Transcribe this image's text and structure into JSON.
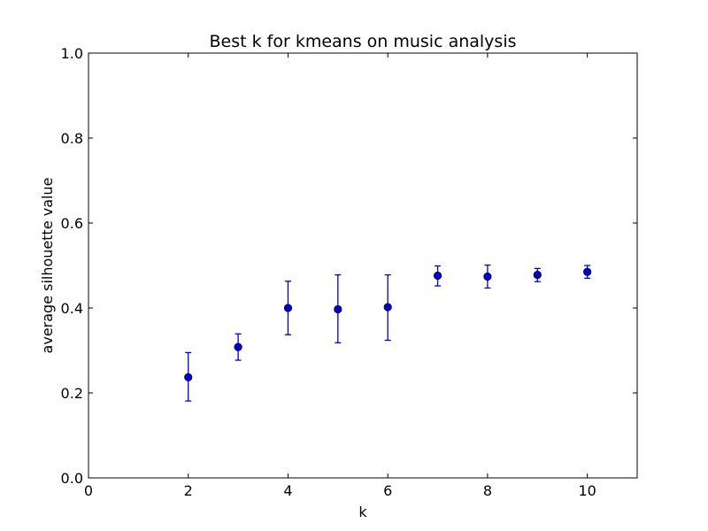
{
  "chart_data": {
    "type": "scatter",
    "title": "Best k for kmeans on music analysis",
    "xlabel": "k",
    "ylabel": "average silhouette value",
    "xlim": [
      0,
      11
    ],
    "ylim": [
      0.0,
      1.0
    ],
    "x_ticks": [
      0,
      2,
      4,
      6,
      8,
      10
    ],
    "x_tick_labels": [
      "0",
      "2",
      "4",
      "6",
      "8",
      "10"
    ],
    "y_ticks": [
      0.0,
      0.2,
      0.4,
      0.6,
      0.8,
      1.0
    ],
    "y_tick_labels": [
      "0.0",
      "0.2",
      "0.4",
      "0.6",
      "0.8",
      "1.0"
    ],
    "grid": false,
    "series": [
      {
        "marker": "circle",
        "error_bars": true,
        "points": [
          {
            "x": 2,
            "y": 0.237,
            "y_low": 0.181,
            "y_high": 0.295
          },
          {
            "x": 3,
            "y": 0.308,
            "y_low": 0.277,
            "y_high": 0.339
          },
          {
            "x": 4,
            "y": 0.4,
            "y_low": 0.337,
            "y_high": 0.463
          },
          {
            "x": 5,
            "y": 0.397,
            "y_low": 0.318,
            "y_high": 0.478
          },
          {
            "x": 6,
            "y": 0.402,
            "y_low": 0.324,
            "y_high": 0.478
          },
          {
            "x": 7,
            "y": 0.476,
            "y_low": 0.452,
            "y_high": 0.499
          },
          {
            "x": 8,
            "y": 0.474,
            "y_low": 0.447,
            "y_high": 0.501
          },
          {
            "x": 9,
            "y": 0.478,
            "y_low": 0.462,
            "y_high": 0.493
          },
          {
            "x": 10,
            "y": 0.485,
            "y_low": 0.47,
            "y_high": 0.5
          }
        ]
      }
    ]
  },
  "colors": {
    "series": "#0000cc",
    "axes": "#000000",
    "background": "#ffffff"
  }
}
